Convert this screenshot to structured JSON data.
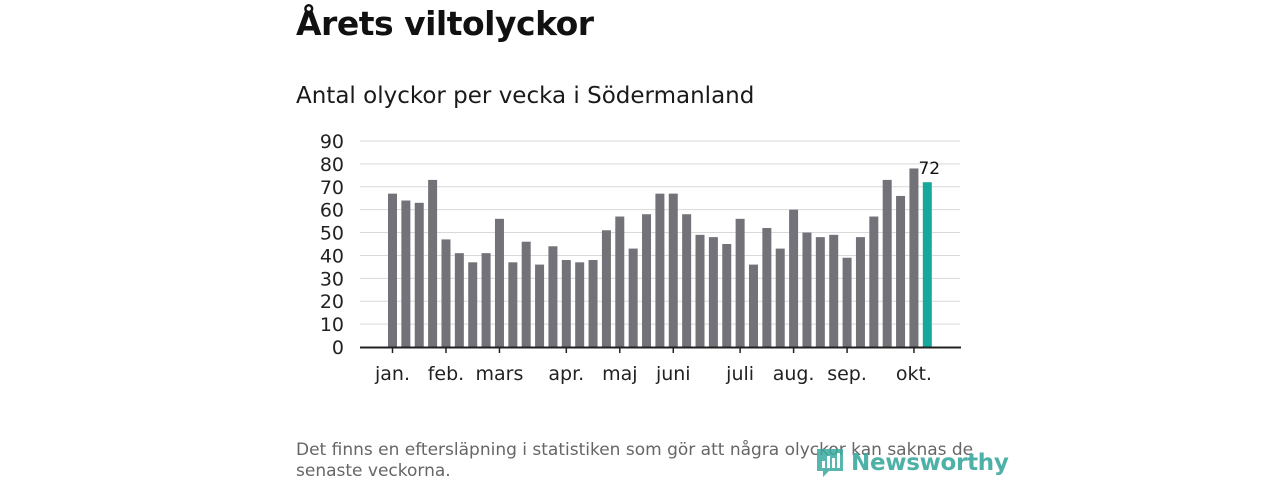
{
  "header": {
    "title": "Årets viltolyckor",
    "subtitle": "Antal olyckor per vecka i Södermanland"
  },
  "footer": {
    "note": "Det finns en eftersläpning i statistiken som gör att några olyckor kan saknas de senaste veckorna.",
    "logo_text": "Newsworthy"
  },
  "colors": {
    "bar": "#737278",
    "highlight": "#17a89b",
    "grid": "#d9d9d9",
    "axis": "#222222",
    "logo": "#3aa99f"
  },
  "chart_data": {
    "type": "bar",
    "title": "Antal olyckor per vecka i Södermanland",
    "xlabel": "",
    "ylabel": "",
    "ylim": [
      0,
      90
    ],
    "yticks": [
      0,
      10,
      20,
      30,
      40,
      50,
      60,
      70,
      80,
      90
    ],
    "grid": true,
    "values": [
      67,
      64,
      63,
      73,
      47,
      41,
      37,
      41,
      56,
      37,
      46,
      36,
      44,
      38,
      37,
      38,
      51,
      57,
      43,
      58,
      67,
      67,
      58,
      49,
      48,
      45,
      56,
      36,
      52,
      43,
      60,
      50,
      48,
      49,
      39,
      48,
      57,
      73,
      66,
      78,
      72
    ],
    "highlight_index": 40,
    "highlight_label": "72",
    "month_ticks": [
      {
        "label": "jan.",
        "bar_index": 0
      },
      {
        "label": "feb.",
        "bar_index": 4
      },
      {
        "label": "mars",
        "bar_index": 8
      },
      {
        "label": "apr.",
        "bar_index": 13
      },
      {
        "label": "maj",
        "bar_index": 17
      },
      {
        "label": "juni",
        "bar_index": 21
      },
      {
        "label": "juli",
        "bar_index": 26
      },
      {
        "label": "aug.",
        "bar_index": 30
      },
      {
        "label": "sep.",
        "bar_index": 34
      },
      {
        "label": "okt.",
        "bar_index": 39
      }
    ]
  }
}
